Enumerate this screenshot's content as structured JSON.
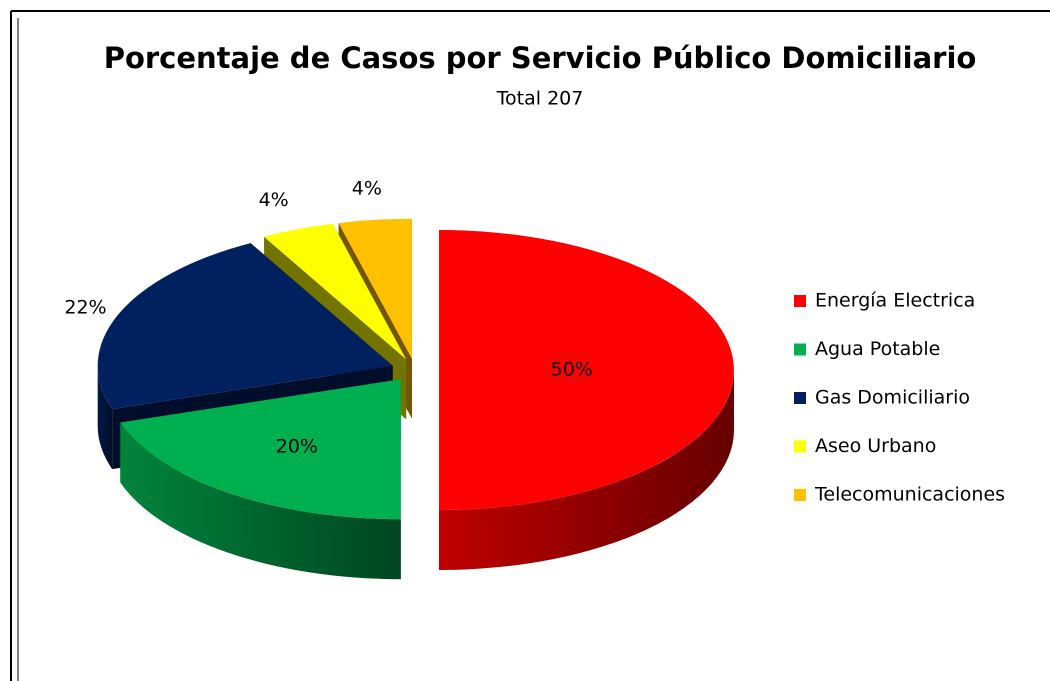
{
  "chart_data": {
    "type": "pie3d",
    "title": "Porcentaje de Casos por Servicio Público Domiciliario",
    "subtitle": "Total 207",
    "categories": [
      "Energía Electrica",
      "Agua Potable",
      "Gas Domiciliario",
      "Aseo Urbano",
      "Telecomunicaciones"
    ],
    "values": [
      50,
      20,
      22,
      4,
      4
    ],
    "value_labels": [
      "50%",
      "20%",
      "22%",
      "4%",
      "4%"
    ],
    "colors": [
      "#ff0000",
      "#00b050",
      "#002060",
      "#ffff00",
      "#ffc000"
    ],
    "legend": "right"
  }
}
